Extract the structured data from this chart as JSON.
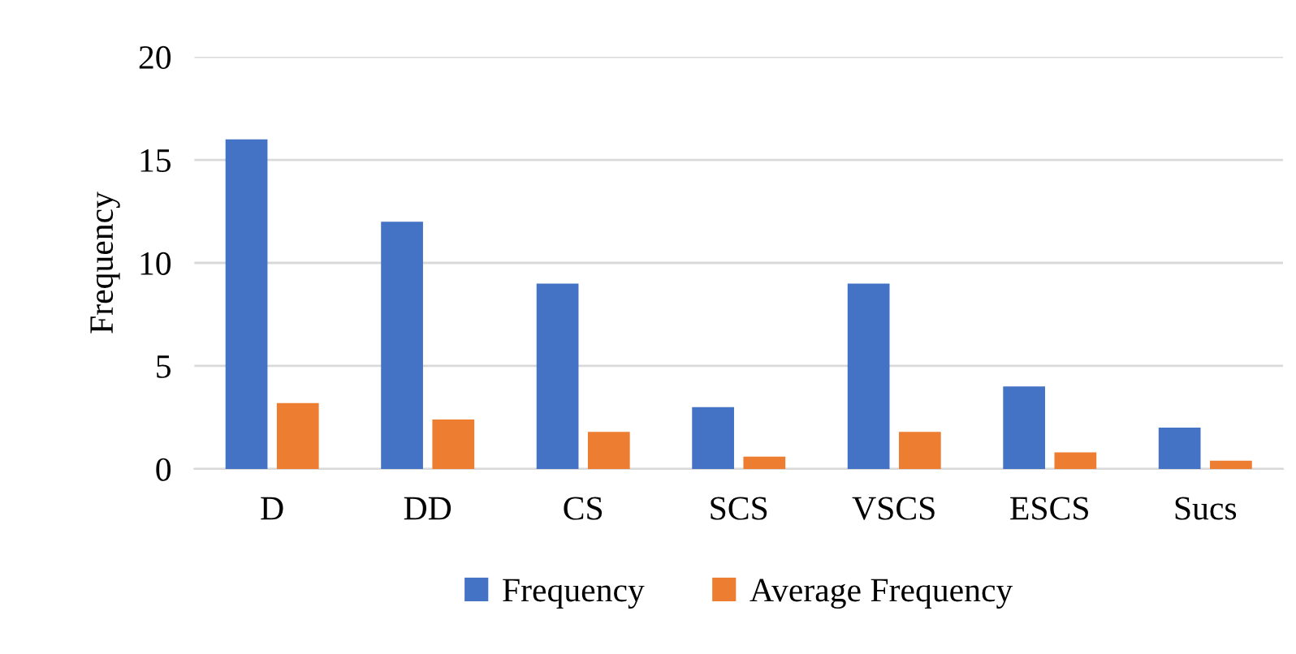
{
  "chart_data": {
    "type": "bar",
    "ylabel": "Frequency",
    "categories": [
      "D",
      "DD",
      "CS",
      "SCS",
      "VSCS",
      "ESCS",
      "Sucs"
    ],
    "series": [
      {
        "name": "Frequency",
        "color": "#4472c4",
        "values": [
          16,
          12,
          9,
          3,
          9,
          4,
          2
        ]
      },
      {
        "name": "Average Frequency",
        "color": "#ed7d31",
        "values": [
          3.2,
          2.4,
          1.8,
          0.6,
          1.8,
          0.8,
          0.4
        ]
      }
    ],
    "ylim": [
      0,
      20
    ],
    "yticks": [
      0,
      5,
      10,
      15,
      20
    ],
    "grid": "y",
    "legend": "bottom"
  }
}
